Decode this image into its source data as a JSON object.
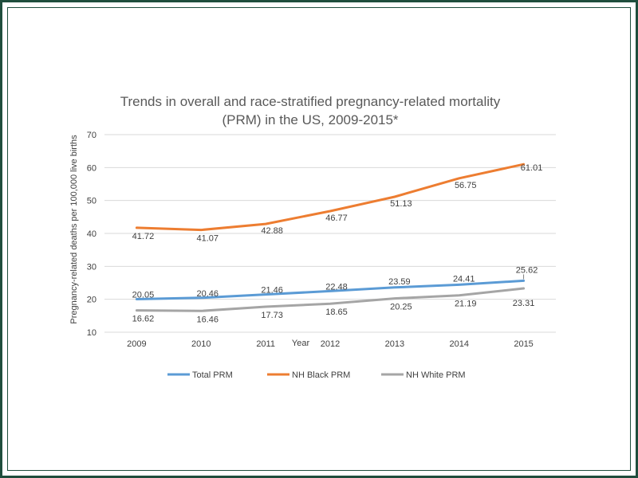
{
  "chart_data": {
    "type": "line",
    "title_lines": [
      "Trends in overall and race-stratified pregnancy-related mortality",
      "(PRM) in the US, 2009-2015*"
    ],
    "xlabel": "Year",
    "ylabel": "Pregnancy-related deaths per 100,000 live births",
    "categories": [
      "2009",
      "2010",
      "2011",
      "2012",
      "2013",
      "2014",
      "2015"
    ],
    "ylim": [
      10,
      70
    ],
    "yticks": [
      "10",
      "20",
      "30",
      "40",
      "50",
      "60",
      "70"
    ],
    "grid": true,
    "legend_position": "bottom",
    "series": [
      {
        "name": "Total PRM",
        "color": "#5b9bd5",
        "values": [
          20.05,
          20.46,
          21.46,
          22.48,
          23.59,
          24.41,
          25.62
        ],
        "labels": [
          "20.05",
          "20.46",
          "21.46",
          "22.48",
          "23.59",
          "24.41",
          "25.62"
        ]
      },
      {
        "name": "NH Black PRM",
        "color": "#ed7d31",
        "values": [
          41.72,
          41.07,
          42.88,
          46.77,
          51.13,
          56.75,
          61.01
        ],
        "labels": [
          "41.72",
          "41.07",
          "42.88",
          "46.77",
          "51.13",
          "56.75",
          "61.01"
        ]
      },
      {
        "name": "NH White PRM",
        "color": "#a5a5a5",
        "values": [
          16.62,
          16.46,
          17.73,
          18.65,
          20.25,
          21.19,
          23.31
        ],
        "labels": [
          "16.62",
          "16.46",
          "17.73",
          "18.65",
          "20.25",
          "21.19",
          "23.31"
        ]
      }
    ]
  }
}
